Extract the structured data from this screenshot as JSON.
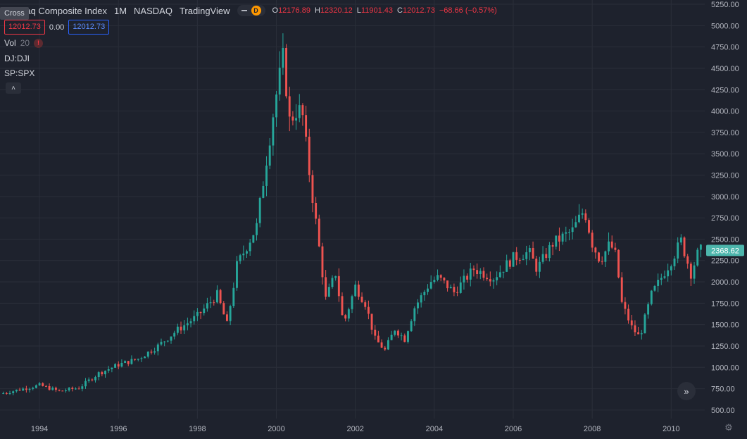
{
  "header": {
    "title": "Nasdaq Composite Index",
    "interval": "1M",
    "exchange": "NASDAQ",
    "provider": "TradingView",
    "source_badge": "D",
    "ohlc": {
      "o_label": "O",
      "o_value": "12176.89",
      "h_label": "H",
      "h_value": "12320.12",
      "l_label": "L",
      "l_value": "11901.43",
      "c_label": "C",
      "c_value": "12012.73",
      "change": "−68.66 (−0.57%)"
    }
  },
  "crosshair_tooltip": "Cross",
  "price_boxes": {
    "sell": "12012.73",
    "spread": "0.00",
    "buy": "12012.73"
  },
  "indicators": {
    "vol_label": "Vol",
    "vol_value": "20",
    "vol_warning": "!",
    "compare_1": "DJ:DJI",
    "compare_2": "SP:SPX",
    "collapse_glyph": "˄"
  },
  "scroll_glyph": "»",
  "gear_glyph": "⚙",
  "colors": {
    "up": "#26a69a",
    "down": "#ef5350",
    "background": "#1e222d",
    "grid": "#2a2e39",
    "axis_text": "#b2b5be",
    "last_price_bg": "#4db6ac"
  },
  "chart_data": {
    "type": "candlestick",
    "interval": "1M",
    "y_axis_ticks": [
      "500.00",
      "750.00",
      "1000.00",
      "1250.00",
      "1500.00",
      "1750.00",
      "2000.00",
      "2250.00",
      "2500.00",
      "2750.00",
      "3000.00",
      "3250.00",
      "3500.00",
      "3750.00",
      "4000.00",
      "4250.00",
      "4500.00",
      "4750.00",
      "5000.00",
      "5250.00"
    ],
    "x_axis_ticks": [
      "1994",
      "1996",
      "1998",
      "2000",
      "2002",
      "2004",
      "2006",
      "2008",
      "2010"
    ],
    "ylim": [
      400,
      5300
    ],
    "xlim": [
      1993.0,
      2010.85
    ],
    "last_price_label": "2368.62",
    "last_price": 2368.62,
    "close_anchors": [
      [
        1993.0,
        690
      ],
      [
        1993.5,
        740
      ],
      [
        1994.0,
        790
      ],
      [
        1994.5,
        720
      ],
      [
        1995.0,
        760
      ],
      [
        1995.5,
        930
      ],
      [
        1996.0,
        1030
      ],
      [
        1996.5,
        1100
      ],
      [
        1997.0,
        1250
      ],
      [
        1997.5,
        1440
      ],
      [
        1998.0,
        1600
      ],
      [
        1998.5,
        1850
      ],
      [
        1998.75,
        1500
      ],
      [
        1999.0,
        2190
      ],
      [
        1999.5,
        2650
      ],
      [
        1999.95,
        4069
      ],
      [
        2000.2,
        4700
      ],
      [
        2000.3,
        3860
      ],
      [
        2000.5,
        4000
      ],
      [
        2000.65,
        4000
      ],
      [
        2000.8,
        3400
      ],
      [
        2001.0,
        2700
      ],
      [
        2001.25,
        1800
      ],
      [
        2001.5,
        2100
      ],
      [
        2001.7,
        1500
      ],
      [
        2002.0,
        1950
      ],
      [
        2002.25,
        1750
      ],
      [
        2002.5,
        1330
      ],
      [
        2002.75,
        1200
      ],
      [
        2003.0,
        1450
      ],
      [
        2003.25,
        1330
      ],
      [
        2003.5,
        1700
      ],
      [
        2003.9,
        2000
      ],
      [
        2004.1,
        2050
      ],
      [
        2004.5,
        1880
      ],
      [
        2005.0,
        2150
      ],
      [
        2005.5,
        2050
      ],
      [
        2006.0,
        2280
      ],
      [
        2006.4,
        2350
      ],
      [
        2006.6,
        2150
      ],
      [
        2007.0,
        2450
      ],
      [
        2007.5,
        2600
      ],
      [
        2007.8,
        2850
      ],
      [
        2008.0,
        2450
      ],
      [
        2008.2,
        2250
      ],
      [
        2008.45,
        2450
      ],
      [
        2008.6,
        2300
      ],
      [
        2008.75,
        1750
      ],
      [
        2009.0,
        1470
      ],
      [
        2009.2,
        1350
      ],
      [
        2009.5,
        1850
      ],
      [
        2010.0,
        2250
      ],
      [
        2010.25,
        2480
      ],
      [
        2010.5,
        2100
      ],
      [
        2010.7,
        2368.62
      ]
    ]
  }
}
